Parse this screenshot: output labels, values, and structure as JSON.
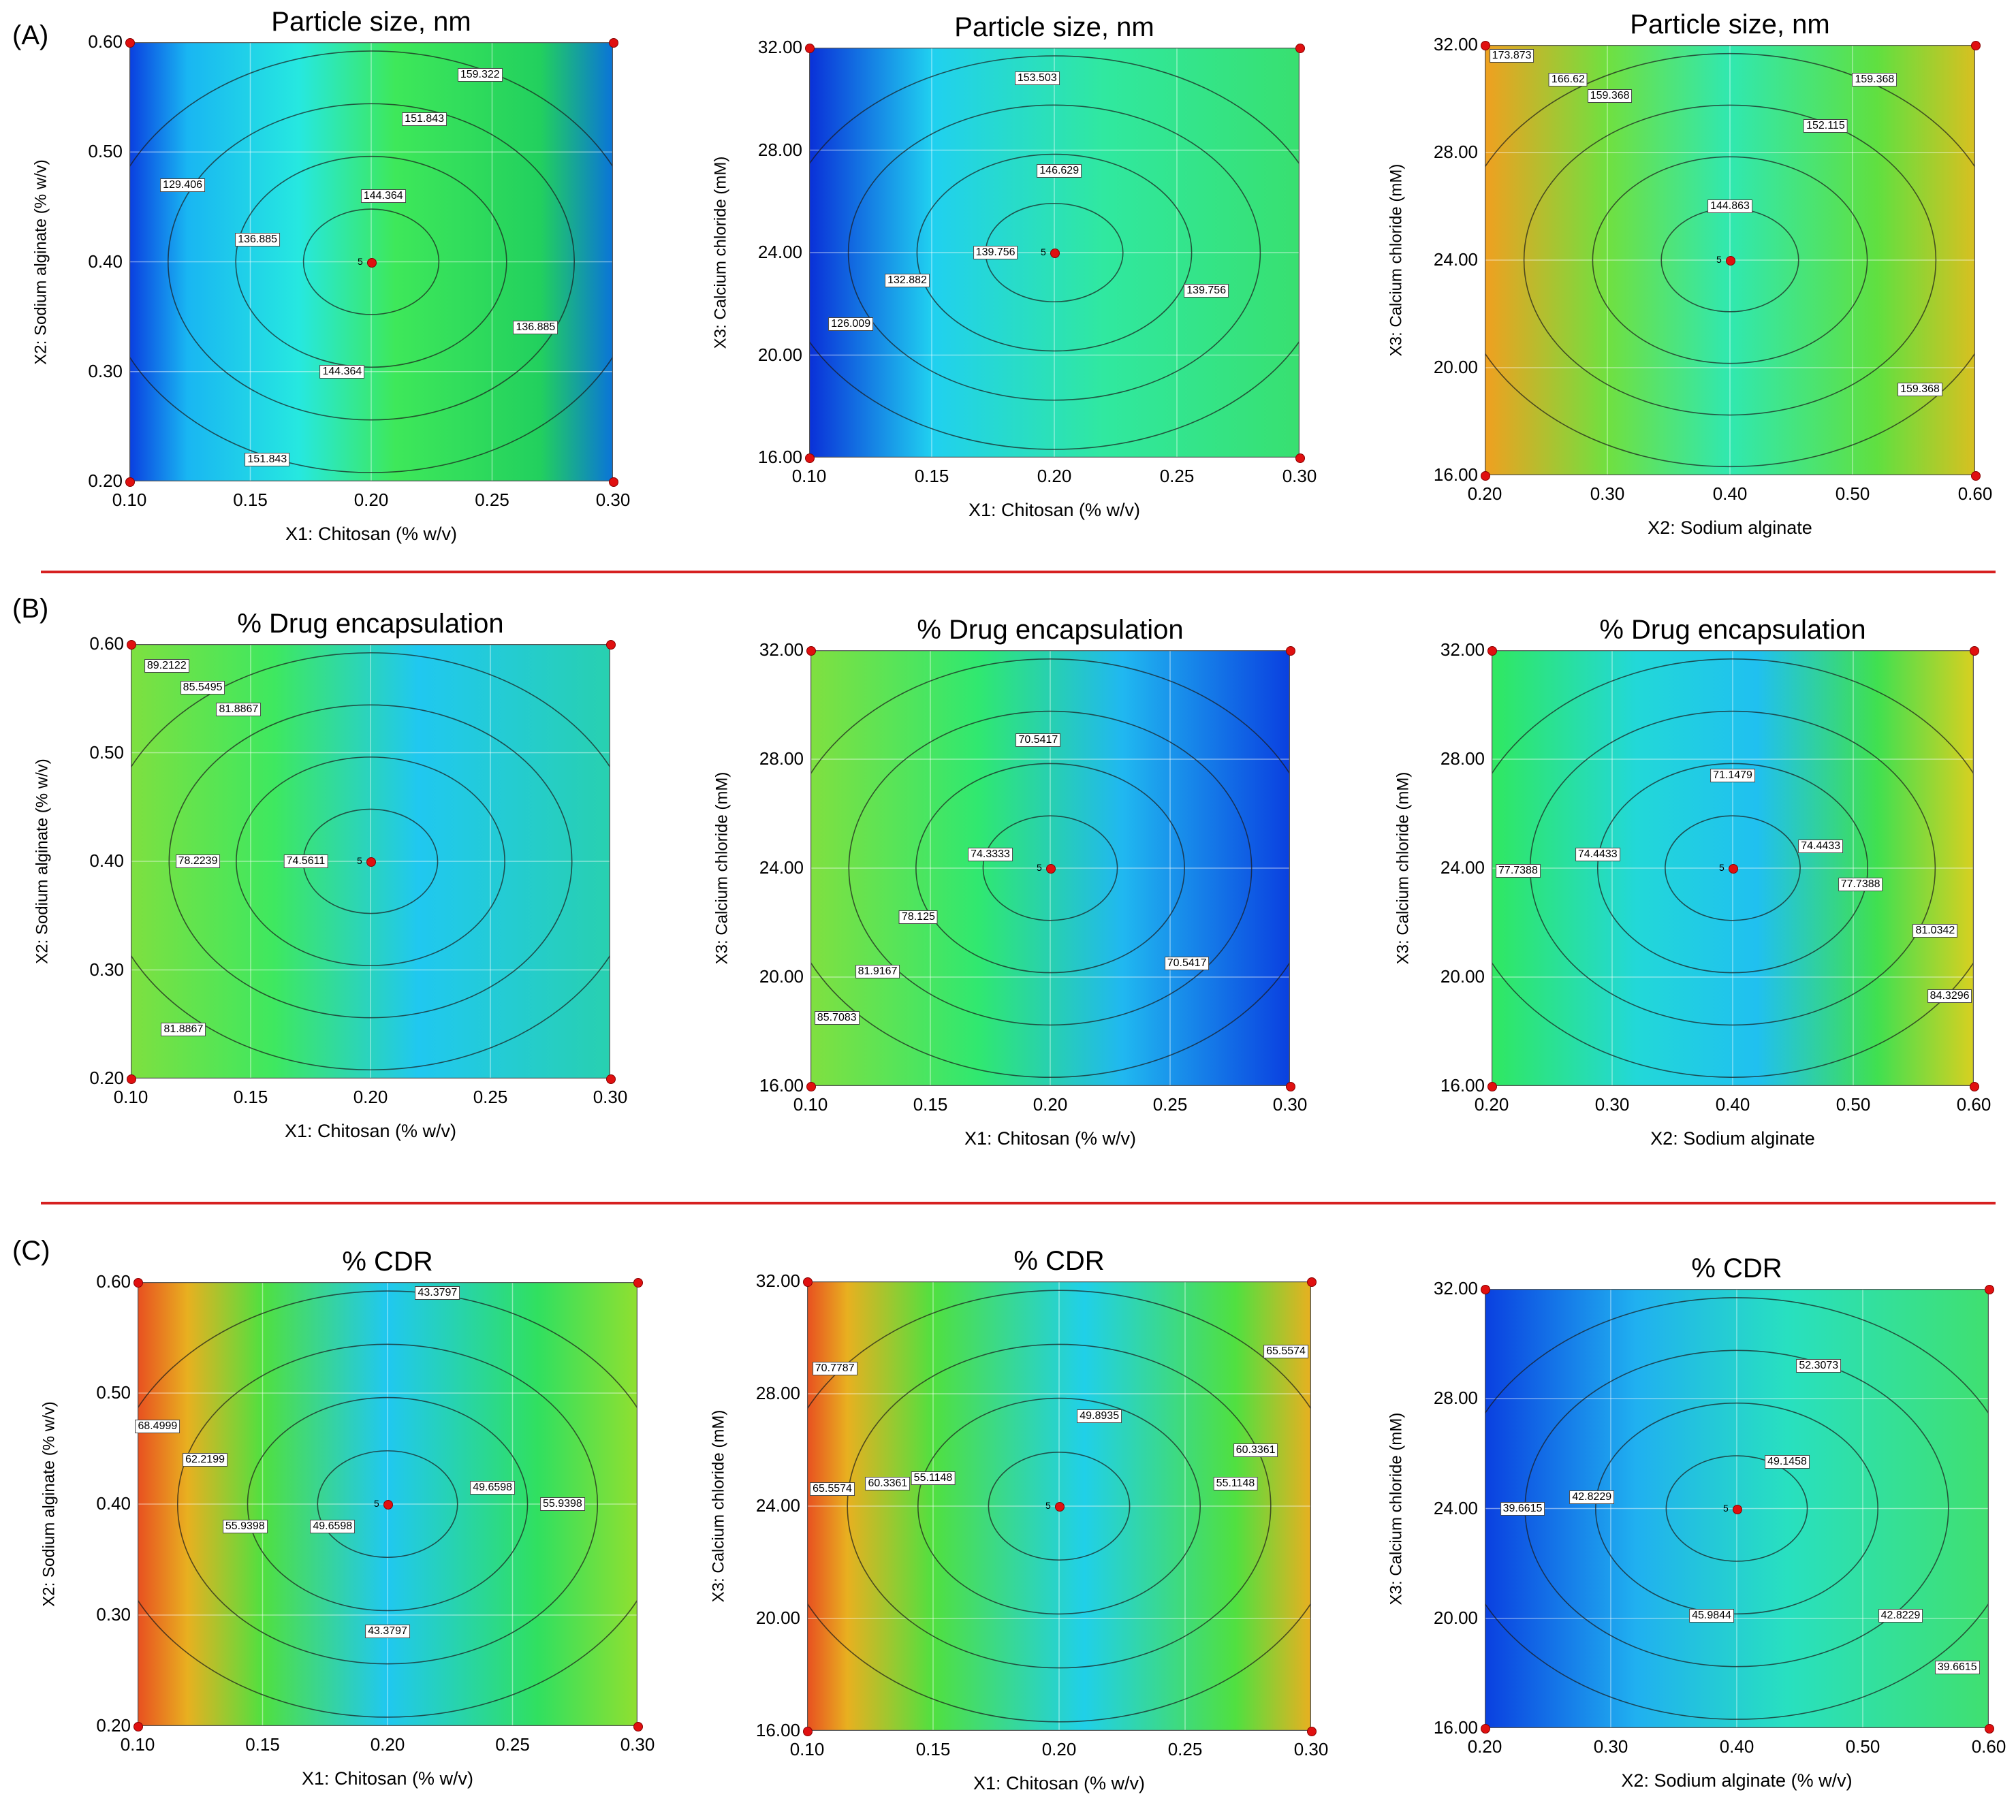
{
  "panels": [
    {
      "letter": "(A)"
    },
    {
      "letter": "(B)"
    },
    {
      "letter": "(C)"
    }
  ],
  "colors": {
    "separator": "#d62020",
    "design_point": "#e01010"
  },
  "chart_data": [
    {
      "type": "heatmap",
      "id": "a1",
      "title": "Particle size, nm",
      "xlabel": "X1: Chitosan (% w/v)",
      "ylabel": "X2: Sodium alginate (% w/v)",
      "xticks": [
        "0.10",
        "0.15",
        "0.20",
        "0.25",
        "0.30"
      ],
      "yticks": [
        "0.20",
        "0.30",
        "0.40",
        "0.50",
        "0.60"
      ],
      "xlim": [
        0.1,
        0.3
      ],
      "ylim": [
        0.2,
        0.6
      ],
      "center_point_label": "5",
      "gradient_stops": [
        {
          "x": 0.0,
          "color": "#0a3fe0"
        },
        {
          "x": 0.12,
          "color": "#19b6f2"
        },
        {
          "x": 0.35,
          "color": "#26e8e0"
        },
        {
          "x": 0.55,
          "color": "#3ee85a"
        },
        {
          "x": 0.85,
          "color": "#22d05e"
        },
        {
          "x": 1.0,
          "color": "#0a74d8"
        }
      ],
      "contour_labels": [
        {
          "text": "159.322",
          "x": 0.245,
          "y": 0.57
        },
        {
          "text": "151.843",
          "x": 0.222,
          "y": 0.53
        },
        {
          "text": "144.364",
          "x": 0.205,
          "y": 0.46
        },
        {
          "text": "129.406",
          "x": 0.122,
          "y": 0.47
        },
        {
          "text": "136.885",
          "x": 0.153,
          "y": 0.42
        },
        {
          "text": "136.885",
          "x": 0.268,
          "y": 0.34
        },
        {
          "text": "144.364",
          "x": 0.188,
          "y": 0.3
        },
        {
          "text": "151.843",
          "x": 0.157,
          "y": 0.22
        }
      ]
    },
    {
      "type": "heatmap",
      "id": "a2",
      "title": "Particle size, nm",
      "xlabel": "X1: Chitosan (% w/v)",
      "ylabel": "X3: Calcium chloride (mM)",
      "xticks": [
        "0.10",
        "0.15",
        "0.20",
        "0.25",
        "0.30"
      ],
      "yticks": [
        "16.00",
        "20.00",
        "24.00",
        "28.00",
        "32.00"
      ],
      "xlim": [
        0.1,
        0.3
      ],
      "ylim": [
        16,
        32
      ],
      "center_point_label": "5",
      "gradient_stops": [
        {
          "x": 0.0,
          "color": "#0a30d8"
        },
        {
          "x": 0.25,
          "color": "#20d0f0"
        },
        {
          "x": 0.6,
          "color": "#30e8a0"
        },
        {
          "x": 1.0,
          "color": "#38e070"
        }
      ],
      "contour_labels": [
        {
          "text": "153.503",
          "x": 0.193,
          "y": 30.8
        },
        {
          "text": "146.629",
          "x": 0.202,
          "y": 27.2
        },
        {
          "text": "139.756",
          "x": 0.176,
          "y": 24.0
        },
        {
          "text": "132.882",
          "x": 0.14,
          "y": 22.9
        },
        {
          "text": "126.009",
          "x": 0.117,
          "y": 21.2
        },
        {
          "text": "139.756",
          "x": 0.262,
          "y": 22.5
        }
      ]
    },
    {
      "type": "heatmap",
      "id": "a3",
      "title": "Particle size, nm",
      "xlabel": "X2: Sodium alginate",
      "ylabel": "X3: Calcium chloride (mM)",
      "xticks": [
        "0.20",
        "0.30",
        "0.40",
        "0.50",
        "0.60"
      ],
      "yticks": [
        "16.00",
        "20.00",
        "24.00",
        "28.00",
        "32.00"
      ],
      "xlim": [
        0.2,
        0.6
      ],
      "ylim": [
        16,
        32
      ],
      "center_point_label": "5",
      "gradient_stops": [
        {
          "x": 0.0,
          "color": "#f0a020"
        },
        {
          "x": 0.25,
          "color": "#70e040"
        },
        {
          "x": 0.5,
          "color": "#30e8b0"
        },
        {
          "x": 0.8,
          "color": "#60e040"
        },
        {
          "x": 1.0,
          "color": "#d8c020"
        }
      ],
      "contour_labels": [
        {
          "text": "173.873",
          "x": 0.222,
          "y": 31.6
        },
        {
          "text": "166.62",
          "x": 0.268,
          "y": 30.7
        },
        {
          "text": "159.368",
          "x": 0.302,
          "y": 30.1
        },
        {
          "text": "159.368",
          "x": 0.518,
          "y": 30.7
        },
        {
          "text": "152.115",
          "x": 0.478,
          "y": 29.0
        },
        {
          "text": "144.863",
          "x": 0.4,
          "y": 26.0
        },
        {
          "text": "159.368",
          "x": 0.555,
          "y": 19.2
        }
      ]
    },
    {
      "type": "heatmap",
      "id": "b1",
      "title": "% Drug encapsulation",
      "xlabel": "X1: Chitosan (% w/v)",
      "ylabel": "X2: Sodium alginate (% w/v)",
      "xticks": [
        "0.10",
        "0.15",
        "0.20",
        "0.25",
        "0.30"
      ],
      "yticks": [
        "0.20",
        "0.30",
        "0.40",
        "0.50",
        "0.60"
      ],
      "xlim": [
        0.1,
        0.3
      ],
      "ylim": [
        0.2,
        0.6
      ],
      "center_point_label": "5",
      "gradient_stops": [
        {
          "x": 0.0,
          "color": "#7ee040"
        },
        {
          "x": 0.3,
          "color": "#3ee860"
        },
        {
          "x": 0.6,
          "color": "#20c8f0"
        },
        {
          "x": 1.0,
          "color": "#28d0b0"
        }
      ],
      "contour_labels": [
        {
          "text": "89.2122",
          "x": 0.115,
          "y": 0.58
        },
        {
          "text": "85.5495",
          "x": 0.13,
          "y": 0.56
        },
        {
          "text": "81.8867",
          "x": 0.145,
          "y": 0.54
        },
        {
          "text": "78.2239",
          "x": 0.128,
          "y": 0.4
        },
        {
          "text": "74.5611",
          "x": 0.173,
          "y": 0.4
        },
        {
          "text": "81.8867",
          "x": 0.122,
          "y": 0.245
        }
      ]
    },
    {
      "type": "heatmap",
      "id": "b2",
      "title": "% Drug encapsulation",
      "xlabel": "X1: Chitosan (% w/v)",
      "ylabel": "X3: Calcium chloride (mM)",
      "xticks": [
        "0.10",
        "0.15",
        "0.20",
        "0.25",
        "0.30"
      ],
      "yticks": [
        "16.00",
        "20.00",
        "24.00",
        "28.00",
        "32.00"
      ],
      "xlim": [
        0.1,
        0.3
      ],
      "ylim": [
        16,
        32
      ],
      "center_point_label": "5",
      "gradient_stops": [
        {
          "x": 0.0,
          "color": "#80e040"
        },
        {
          "x": 0.35,
          "color": "#30e870"
        },
        {
          "x": 0.65,
          "color": "#20b8f0"
        },
        {
          "x": 1.0,
          "color": "#0a40e0"
        }
      ],
      "contour_labels": [
        {
          "text": "70.5417",
          "x": 0.195,
          "y": 28.7
        },
        {
          "text": "74.3333",
          "x": 0.175,
          "y": 24.5
        },
        {
          "text": "78.125",
          "x": 0.145,
          "y": 22.2
        },
        {
          "text": "81.9167",
          "x": 0.128,
          "y": 20.2
        },
        {
          "text": "85.7083",
          "x": 0.111,
          "y": 18.5
        },
        {
          "text": "70.5417",
          "x": 0.257,
          "y": 20.5
        }
      ]
    },
    {
      "type": "heatmap",
      "id": "b3",
      "title": "% Drug encapsulation",
      "xlabel": "X2: Sodium alginate",
      "ylabel": "X3: Calcium chloride (mM)",
      "xticks": [
        "0.20",
        "0.30",
        "0.40",
        "0.50",
        "0.60"
      ],
      "yticks": [
        "16.00",
        "20.00",
        "24.00",
        "28.00",
        "32.00"
      ],
      "xlim": [
        0.2,
        0.6
      ],
      "ylim": [
        16,
        32
      ],
      "center_point_label": "5",
      "gradient_stops": [
        {
          "x": 0.0,
          "color": "#30e860"
        },
        {
          "x": 0.3,
          "color": "#22d8d8"
        },
        {
          "x": 0.55,
          "color": "#20c0f0"
        },
        {
          "x": 0.8,
          "color": "#40e050"
        },
        {
          "x": 1.0,
          "color": "#d8d020"
        }
      ],
      "contour_labels": [
        {
          "text": "71.1479",
          "x": 0.4,
          "y": 27.4
        },
        {
          "text": "77.7388",
          "x": 0.222,
          "y": 23.9
        },
        {
          "text": "74.4433",
          "x": 0.288,
          "y": 24.5
        },
        {
          "text": "74.4433",
          "x": 0.473,
          "y": 24.8
        },
        {
          "text": "77.7388",
          "x": 0.506,
          "y": 23.4
        },
        {
          "text": "81.0342",
          "x": 0.568,
          "y": 21.7
        },
        {
          "text": "84.3296",
          "x": 0.58,
          "y": 19.3
        }
      ]
    },
    {
      "type": "heatmap",
      "id": "c1",
      "title": "% CDR",
      "xlabel": "X1: Chitosan (% w/v)",
      "ylabel": "X2: Sodium alginate (% w/v)",
      "xticks": [
        "0.10",
        "0.15",
        "0.20",
        "0.25",
        "0.30"
      ],
      "yticks": [
        "0.20",
        "0.30",
        "0.40",
        "0.50",
        "0.60"
      ],
      "xlim": [
        0.1,
        0.3
      ],
      "ylim": [
        0.2,
        0.6
      ],
      "center_point_label": "5",
      "gradient_stops": [
        {
          "x": 0.0,
          "color": "#e85020"
        },
        {
          "x": 0.1,
          "color": "#e8b020"
        },
        {
          "x": 0.25,
          "color": "#50e040"
        },
        {
          "x": 0.5,
          "color": "#20c8f0"
        },
        {
          "x": 0.8,
          "color": "#30e060"
        },
        {
          "x": 1.0,
          "color": "#90e030"
        }
      ],
      "contour_labels": [
        {
          "text": "43.3797",
          "x": 0.22,
          "y": 0.59
        },
        {
          "text": "68.4999",
          "x": 0.108,
          "y": 0.47
        },
        {
          "text": "62.2199",
          "x": 0.127,
          "y": 0.44
        },
        {
          "text": "55.9398",
          "x": 0.143,
          "y": 0.38
        },
        {
          "text": "49.6598",
          "x": 0.178,
          "y": 0.38
        },
        {
          "text": "49.6598",
          "x": 0.242,
          "y": 0.415
        },
        {
          "text": "55.9398",
          "x": 0.27,
          "y": 0.4
        },
        {
          "text": "43.3797",
          "x": 0.2,
          "y": 0.285
        }
      ]
    },
    {
      "type": "heatmap",
      "id": "c2",
      "title": "% CDR",
      "xlabel": "X1: Chitosan (% w/v)",
      "ylabel": "X3: Calcium chloride (mM)",
      "xticks": [
        "0.10",
        "0.15",
        "0.20",
        "0.25",
        "0.30"
      ],
      "yticks": [
        "16.00",
        "20.00",
        "24.00",
        "28.00",
        "32.00"
      ],
      "xlim": [
        0.1,
        0.3
      ],
      "ylim": [
        16,
        32
      ],
      "center_point_label": "5",
      "gradient_stops": [
        {
          "x": 0.0,
          "color": "#e85020"
        },
        {
          "x": 0.08,
          "color": "#e8b020"
        },
        {
          "x": 0.25,
          "color": "#50e040"
        },
        {
          "x": 0.55,
          "color": "#20d0e8"
        },
        {
          "x": 0.85,
          "color": "#50e040"
        },
        {
          "x": 1.0,
          "color": "#e8b020"
        }
      ],
      "contour_labels": [
        {
          "text": "70.7787",
          "x": 0.111,
          "y": 28.9
        },
        {
          "text": "65.5574",
          "x": 0.11,
          "y": 24.6
        },
        {
          "text": "60.3361",
          "x": 0.132,
          "y": 24.8
        },
        {
          "text": "55.1148",
          "x": 0.15,
          "y": 25.0
        },
        {
          "text": "49.8935",
          "x": 0.216,
          "y": 27.2
        },
        {
          "text": "65.5574",
          "x": 0.29,
          "y": 29.5
        },
        {
          "text": "60.3361",
          "x": 0.278,
          "y": 26.0
        },
        {
          "text": "55.1148",
          "x": 0.27,
          "y": 24.8
        }
      ]
    },
    {
      "type": "heatmap",
      "id": "c3",
      "title": "% CDR",
      "xlabel": "X2: Sodium alginate (% w/v)",
      "ylabel": "X3: Calcium chloride (mM)",
      "xticks": [
        "0.20",
        "0.30",
        "0.40",
        "0.50",
        "0.60"
      ],
      "yticks": [
        "16.00",
        "20.00",
        "24.00",
        "28.00",
        "32.00"
      ],
      "xlim": [
        0.2,
        0.6
      ],
      "ylim": [
        16,
        32
      ],
      "center_point_label": "5",
      "gradient_stops": [
        {
          "x": 0.0,
          "color": "#0a40e0"
        },
        {
          "x": 0.3,
          "color": "#20b0f0"
        },
        {
          "x": 0.6,
          "color": "#28e0c0"
        },
        {
          "x": 1.0,
          "color": "#40e070"
        }
      ],
      "contour_labels": [
        {
          "text": "52.3073",
          "x": 0.465,
          "y": 29.2
        },
        {
          "text": "49.1458",
          "x": 0.44,
          "y": 25.7
        },
        {
          "text": "42.8229",
          "x": 0.285,
          "y": 24.4
        },
        {
          "text": "39.6615",
          "x": 0.23,
          "y": 24.0
        },
        {
          "text": "45.9844",
          "x": 0.38,
          "y": 20.1
        },
        {
          "text": "42.8229",
          "x": 0.53,
          "y": 20.1
        },
        {
          "text": "39.6615",
          "x": 0.575,
          "y": 18.2
        }
      ]
    }
  ]
}
